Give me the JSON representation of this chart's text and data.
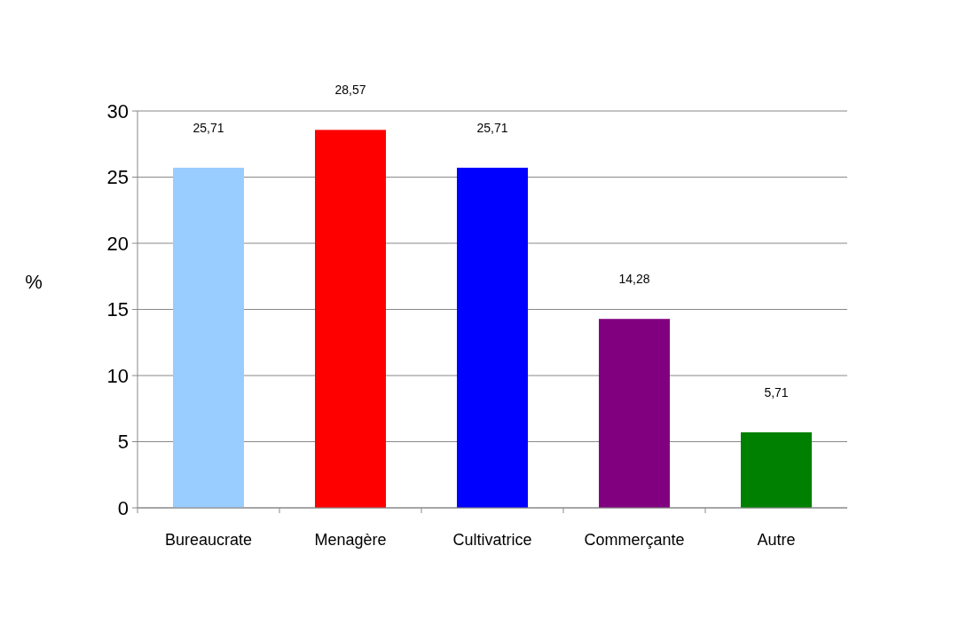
{
  "chart_data": {
    "type": "bar",
    "ylabel": "%",
    "categories": [
      "Bureaucrate",
      "Menagère",
      "Cultivatrice",
      "Commerçante",
      "Autre"
    ],
    "values": [
      25.71,
      28.57,
      25.71,
      14.28,
      5.71
    ],
    "colors": [
      "#99ccff",
      "#ff0000",
      "#0000ff",
      "#800080",
      "#008000"
    ],
    "value_labels": [
      "25,71",
      "28,57",
      "25,71",
      "14,28",
      "5,71"
    ],
    "ylim": [
      0,
      30
    ],
    "yticks": [
      0,
      5,
      10,
      15,
      20,
      25,
      30
    ],
    "grid": "y"
  }
}
